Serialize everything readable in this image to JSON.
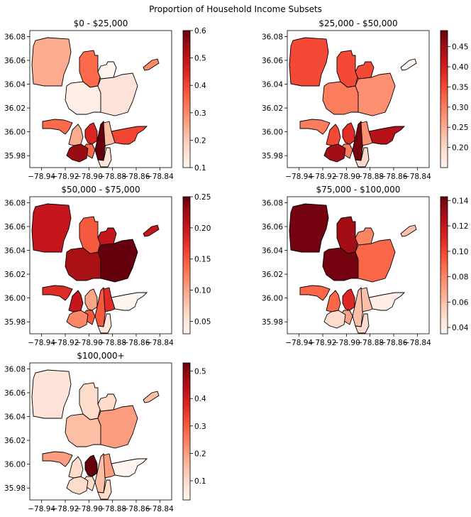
{
  "figure_title": "Proportion of Household Income Subsets",
  "chart_data": [
    {
      "type": "choropleth",
      "title": "$0 - $25,000",
      "colormap": "Reds",
      "xticks": [
        "−78.94",
        "−78.92",
        "−78.90",
        "−78.88",
        "−78.86",
        "−78.84"
      ],
      "yticks": [
        "35.98",
        "36.00",
        "36.02",
        "36.04",
        "36.06",
        "36.08"
      ],
      "colorbar": {
        "min": 0.1,
        "max": 0.6,
        "ticks": [
          "0.1",
          "0.2",
          "0.3",
          "0.4",
          "0.5",
          "0.6"
        ],
        "tick_values": [
          0.1,
          0.2,
          0.3,
          0.4,
          0.5,
          0.6
        ]
      },
      "region_values": [
        0.25,
        0.35,
        0.12,
        0.15,
        0.1,
        0.3,
        0.35,
        0.45,
        0.35,
        0.55,
        0.6,
        0.4,
        0.22,
        0.15,
        0.25
      ]
    },
    {
      "type": "choropleth",
      "title": "$25,000 - $50,000",
      "colormap": "Reds",
      "xticks": [
        "−78.94",
        "−78.92",
        "−78.90",
        "−78.88",
        "−78.86",
        "−78.84"
      ],
      "yticks": [
        "35.98",
        "36.00",
        "36.02",
        "36.04",
        "36.06",
        "36.08"
      ],
      "colorbar": {
        "min": 0.15,
        "max": 0.49,
        "ticks": [
          "0.20",
          "0.25",
          "0.30",
          "0.35",
          "0.40",
          "0.45"
        ],
        "tick_values": [
          0.2,
          0.25,
          0.3,
          0.35,
          0.4,
          0.45
        ]
      },
      "region_values": [
        0.35,
        0.35,
        0.3,
        0.28,
        0.35,
        0.15,
        0.3,
        0.38,
        0.3,
        0.45,
        0.48,
        0.43,
        0.28,
        0.2,
        0.35
      ]
    },
    {
      "type": "choropleth",
      "title": "$50,000 - $75,000",
      "colormap": "Reds",
      "xticks": [
        "−78.94",
        "−78.92",
        "−78.90",
        "−78.88",
        "−78.86",
        "−78.84"
      ],
      "yticks": [
        "35.98",
        "36.00",
        "36.02",
        "36.04",
        "36.06",
        "36.08"
      ],
      "colorbar": {
        "min": 0.03,
        "max": 0.25,
        "ticks": [
          "0.05",
          "0.10",
          "0.15",
          "0.20",
          "0.25"
        ],
        "tick_values": [
          0.05,
          0.1,
          0.15,
          0.2,
          0.25
        ]
      },
      "region_values": [
        0.2,
        0.15,
        0.22,
        0.25,
        0.2,
        0.2,
        0.18,
        0.1,
        0.15,
        0.12,
        0.15,
        0.03,
        0.18,
        0.05,
        0.2
      ]
    },
    {
      "type": "choropleth",
      "title": "$75,000 - $100,000",
      "colormap": "Reds",
      "xticks": [
        "−78.94",
        "−78.92",
        "−78.90",
        "−78.88",
        "−78.86",
        "−78.84"
      ],
      "yticks": [
        "35.98",
        "36.00",
        "36.02",
        "36.04",
        "36.06",
        "36.08"
      ],
      "colorbar": {
        "min": 0.035,
        "max": 0.143,
        "ticks": [
          "0.04",
          "0.06",
          "0.08",
          "0.10",
          "0.12",
          "0.14"
        ],
        "tick_values": [
          0.04,
          0.06,
          0.08,
          0.1,
          0.12,
          0.14
        ]
      },
      "region_values": [
        0.14,
        0.13,
        0.14,
        0.09,
        0.08,
        0.06,
        0.09,
        0.11,
        0.07,
        0.05,
        0.06,
        0.04,
        0.06,
        0.05,
        0.09
      ]
    },
    {
      "type": "choropleth",
      "title": "$100,000+",
      "colormap": "Reds",
      "xticks": [
        "−78.94",
        "−78.92",
        "−78.90",
        "−78.88",
        "−78.86",
        "−78.84"
      ],
      "yticks": [
        "35.98",
        "36.00",
        "36.02",
        "36.04",
        "36.06",
        "36.08"
      ],
      "colorbar": {
        "min": 0.03,
        "max": 0.53,
        "ticks": [
          "0.1",
          "0.2",
          "0.3",
          "0.4",
          "0.5"
        ],
        "tick_values": [
          0.1,
          0.2,
          0.3,
          0.4,
          0.5
        ]
      },
      "region_values": [
        0.08,
        0.1,
        0.15,
        0.2,
        0.1,
        0.15,
        0.2,
        0.53,
        0.1,
        0.1,
        0.15,
        0.03,
        0.2,
        0.1,
        0.1
      ]
    }
  ]
}
